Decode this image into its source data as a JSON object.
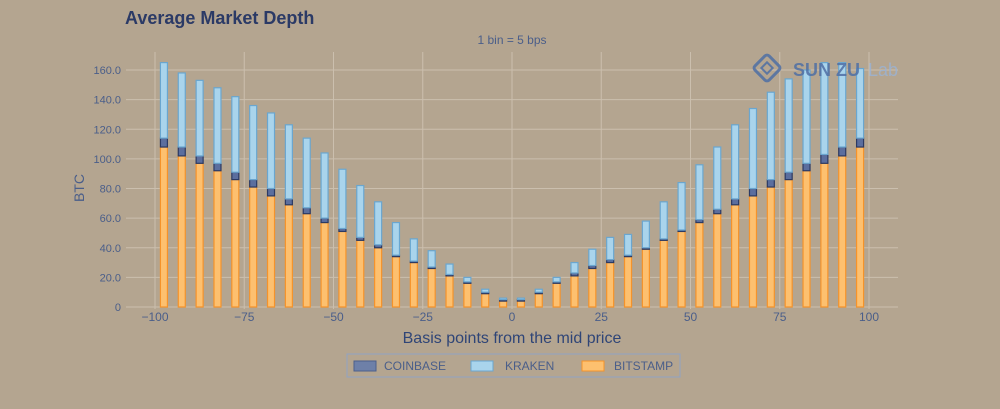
{
  "chart_data": {
    "type": "bar",
    "stacked": true,
    "title": "Average Market Depth",
    "subtitle": "1 bin = 5 bps",
    "xlabel": "Basis points from the mid price",
    "ylabel": "BTC",
    "xlim": [
      -100,
      100
    ],
    "ylim": [
      0,
      170
    ],
    "x_ticks": [
      -100,
      -75,
      -50,
      -25,
      0,
      25,
      50,
      75,
      100
    ],
    "y_ticks": [
      0,
      20,
      40,
      60,
      80,
      100,
      120,
      140,
      160
    ],
    "x_tick_labels": [
      "−100",
      "−75",
      "−50",
      "−25",
      "0",
      "25",
      "50",
      "75",
      "100"
    ],
    "y_tick_labels": [
      "0",
      "20.0",
      "40.0",
      "60.0",
      "80.0",
      "100.0",
      "120.0",
      "140.0",
      "160.0"
    ],
    "grid": true,
    "legend_position": "bottom-center",
    "x": [
      -97.5,
      -92.5,
      -87.5,
      -82.5,
      -77.5,
      -72.5,
      -67.5,
      -62.5,
      -57.5,
      -52.5,
      -47.5,
      -42.5,
      -37.5,
      -32.5,
      -27.5,
      -22.5,
      -17.5,
      -12.5,
      -7.5,
      -2.5,
      2.5,
      7.5,
      12.5,
      17.5,
      22.5,
      27.5,
      32.5,
      37.5,
      42.5,
      47.5,
      52.5,
      57.5,
      62.5,
      67.5,
      72.5,
      77.5,
      82.5,
      87.5,
      92.5,
      97.5
    ],
    "series": [
      {
        "name": "BITSTAMP",
        "color": "#fdc06f",
        "edge": "#f5932a",
        "values": [
          108,
          102,
          97,
          92,
          86,
          81,
          75,
          69,
          63,
          57,
          51,
          45,
          40,
          34,
          30,
          26,
          21,
          16,
          9,
          4,
          4,
          9,
          16,
          21,
          26,
          30,
          34,
          39,
          45,
          51,
          57,
          63,
          69,
          75,
          81,
          86,
          92,
          97,
          102,
          108
        ]
      },
      {
        "name": "COINBASE",
        "color": "#5b6e9e",
        "edge": "#2c3a63",
        "values": [
          6,
          6,
          5,
          5,
          5,
          5,
          5,
          4,
          4,
          3,
          2,
          2,
          2,
          1,
          1,
          1,
          1,
          1,
          1,
          1,
          1,
          1,
          1,
          2,
          2,
          2,
          1,
          1,
          1,
          1,
          2,
          3,
          4,
          5,
          5,
          5,
          5,
          6,
          6,
          6
        ]
      },
      {
        "name": "KRAKEN",
        "color": "#a9d4ec",
        "edge": "#6aa6cf",
        "values": [
          51,
          50,
          51,
          51,
          51,
          50,
          51,
          50,
          47,
          44,
          40,
          35,
          29,
          22,
          15,
          11,
          7,
          3,
          2,
          1,
          1,
          2,
          3,
          7,
          11,
          15,
          14,
          18,
          25,
          32,
          37,
          42,
          50,
          54,
          59,
          63,
          63,
          62,
          57,
          47
        ]
      }
    ]
  },
  "watermark": {
    "text": "SUN ZU Lab",
    "part1": "SUN ZU",
    "part2": "Lab"
  },
  "legend": {
    "labels": [
      "COINBASE",
      "KRAKEN",
      "BITSTAMP"
    ]
  }
}
